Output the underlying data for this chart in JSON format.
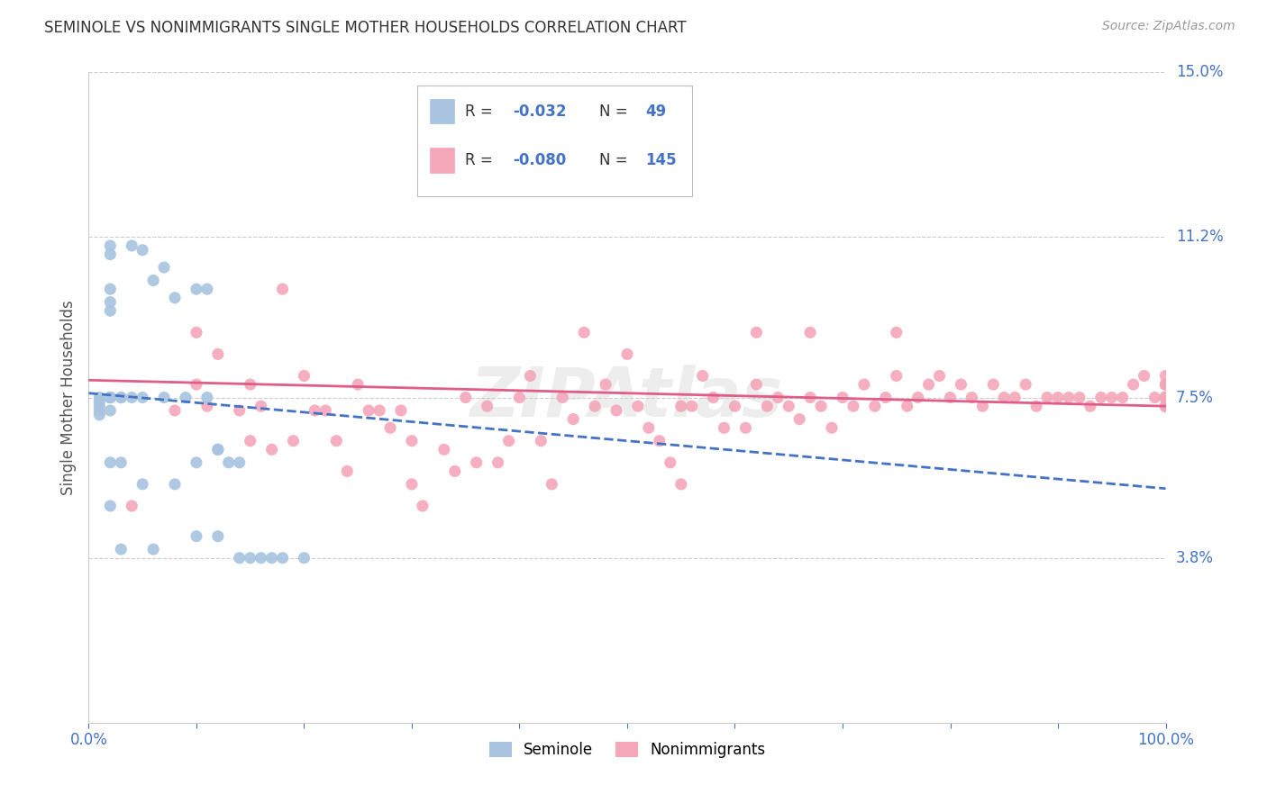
{
  "title": "SEMINOLE VS NONIMMIGRANTS SINGLE MOTHER HOUSEHOLDS CORRELATION CHART",
  "source": "Source: ZipAtlas.com",
  "ylabel": "Single Mother Households",
  "xlim": [
    0,
    1.0
  ],
  "ylim": [
    0,
    0.15
  ],
  "yticks": [
    0.038,
    0.075,
    0.112,
    0.15
  ],
  "ytick_labels": [
    "3.8%",
    "7.5%",
    "11.2%",
    "15.0%"
  ],
  "xticks": [
    0.0,
    0.1,
    0.2,
    0.3,
    0.4,
    0.5,
    0.6,
    0.7,
    0.8,
    0.9,
    1.0
  ],
  "xtick_labels": [
    "0.0%",
    "",
    "",
    "",
    "",
    "",
    "",
    "",
    "",
    "",
    "100.0%"
  ],
  "seminole_color": "#a8c4e0",
  "nonimmigrant_color": "#f4a7b9",
  "trend_seminole_color": "#4472c4",
  "trend_nonimmigrant_color": "#e05c8a",
  "background_color": "#ffffff",
  "watermark": "ZIPAtlas",
  "trend_seminole_x0": 0.0,
  "trend_seminole_y0": 0.076,
  "trend_seminole_x1": 1.0,
  "trend_seminole_y1": 0.054,
  "trend_nonimmigrant_x0": 0.0,
  "trend_nonimmigrant_y0": 0.079,
  "trend_nonimmigrant_x1": 1.0,
  "trend_nonimmigrant_y1": 0.073,
  "seminole_x": [
    0.01,
    0.01,
    0.01,
    0.01,
    0.01,
    0.02,
    0.02,
    0.02,
    0.02,
    0.02,
    0.02,
    0.02,
    0.02,
    0.02,
    0.02,
    0.02,
    0.02,
    0.03,
    0.03,
    0.03,
    0.03,
    0.04,
    0.04,
    0.05,
    0.05,
    0.05,
    0.06,
    0.06,
    0.07,
    0.07,
    0.08,
    0.08,
    0.09,
    0.1,
    0.1,
    0.1,
    0.11,
    0.11,
    0.12,
    0.12,
    0.12,
    0.13,
    0.14,
    0.14,
    0.15,
    0.16,
    0.17,
    0.18,
    0.2
  ],
  "seminole_y": [
    0.075,
    0.074,
    0.073,
    0.072,
    0.071,
    0.11,
    0.108,
    0.1,
    0.097,
    0.095,
    0.075,
    0.075,
    0.075,
    0.075,
    0.072,
    0.06,
    0.05,
    0.075,
    0.075,
    0.06,
    0.04,
    0.11,
    0.075,
    0.109,
    0.075,
    0.055,
    0.102,
    0.04,
    0.105,
    0.075,
    0.098,
    0.055,
    0.075,
    0.1,
    0.06,
    0.043,
    0.1,
    0.075,
    0.063,
    0.063,
    0.043,
    0.06,
    0.06,
    0.038,
    0.038,
    0.038,
    0.038,
    0.038,
    0.038
  ],
  "nonimmigrant_x": [
    0.04,
    0.08,
    0.1,
    0.1,
    0.11,
    0.12,
    0.14,
    0.15,
    0.15,
    0.16,
    0.17,
    0.18,
    0.19,
    0.2,
    0.21,
    0.22,
    0.23,
    0.24,
    0.25,
    0.26,
    0.27,
    0.28,
    0.29,
    0.3,
    0.3,
    0.31,
    0.33,
    0.34,
    0.35,
    0.36,
    0.37,
    0.38,
    0.39,
    0.4,
    0.41,
    0.42,
    0.43,
    0.44,
    0.45,
    0.46,
    0.47,
    0.48,
    0.49,
    0.5,
    0.51,
    0.52,
    0.53,
    0.54,
    0.55,
    0.55,
    0.56,
    0.57,
    0.58,
    0.59,
    0.6,
    0.61,
    0.62,
    0.62,
    0.63,
    0.64,
    0.65,
    0.66,
    0.67,
    0.67,
    0.68,
    0.69,
    0.7,
    0.71,
    0.72,
    0.73,
    0.74,
    0.75,
    0.75,
    0.76,
    0.77,
    0.78,
    0.79,
    0.8,
    0.81,
    0.82,
    0.83,
    0.84,
    0.85,
    0.86,
    0.87,
    0.88,
    0.89,
    0.9,
    0.91,
    0.92,
    0.93,
    0.94,
    0.95,
    0.96,
    0.97,
    0.98,
    0.99,
    1.0,
    1.0,
    1.0,
    1.0,
    1.0,
    1.0,
    1.0,
    1.0,
    1.0,
    1.0,
    1.0,
    1.0,
    1.0,
    1.0,
    1.0,
    1.0,
    1.0,
    1.0,
    1.0,
    1.0,
    1.0,
    1.0,
    1.0,
    1.0,
    1.0,
    1.0,
    1.0,
    1.0,
    1.0,
    1.0,
    1.0,
    1.0,
    1.0,
    1.0,
    1.0,
    1.0,
    1.0,
    1.0,
    1.0,
    1.0,
    1.0,
    1.0,
    1.0,
    1.0,
    1.0
  ],
  "nonimmigrant_y": [
    0.05,
    0.072,
    0.09,
    0.078,
    0.073,
    0.085,
    0.072,
    0.078,
    0.065,
    0.073,
    0.063,
    0.1,
    0.065,
    0.08,
    0.072,
    0.072,
    0.065,
    0.058,
    0.078,
    0.072,
    0.072,
    0.068,
    0.072,
    0.065,
    0.055,
    0.05,
    0.063,
    0.058,
    0.075,
    0.06,
    0.073,
    0.06,
    0.065,
    0.075,
    0.08,
    0.065,
    0.055,
    0.075,
    0.07,
    0.09,
    0.073,
    0.078,
    0.072,
    0.085,
    0.073,
    0.068,
    0.065,
    0.06,
    0.073,
    0.055,
    0.073,
    0.08,
    0.075,
    0.068,
    0.073,
    0.068,
    0.078,
    0.09,
    0.073,
    0.075,
    0.073,
    0.07,
    0.075,
    0.09,
    0.073,
    0.068,
    0.075,
    0.073,
    0.078,
    0.073,
    0.075,
    0.08,
    0.09,
    0.073,
    0.075,
    0.078,
    0.08,
    0.075,
    0.078,
    0.075,
    0.073,
    0.078,
    0.075,
    0.075,
    0.078,
    0.073,
    0.075,
    0.075,
    0.075,
    0.075,
    0.073,
    0.075,
    0.075,
    0.075,
    0.078,
    0.08,
    0.075,
    0.075,
    0.078,
    0.075,
    0.073,
    0.078,
    0.075,
    0.075,
    0.075,
    0.075,
    0.08,
    0.073,
    0.075,
    0.078,
    0.075,
    0.075,
    0.075,
    0.075,
    0.075,
    0.078,
    0.075,
    0.075,
    0.075,
    0.073,
    0.075,
    0.075,
    0.075,
    0.075,
    0.078,
    0.075,
    0.073,
    0.075,
    0.075,
    0.075,
    0.075,
    0.075,
    0.075,
    0.075,
    0.075,
    0.073,
    0.075,
    0.075,
    0.075,
    0.075,
    0.075,
    0.075
  ]
}
